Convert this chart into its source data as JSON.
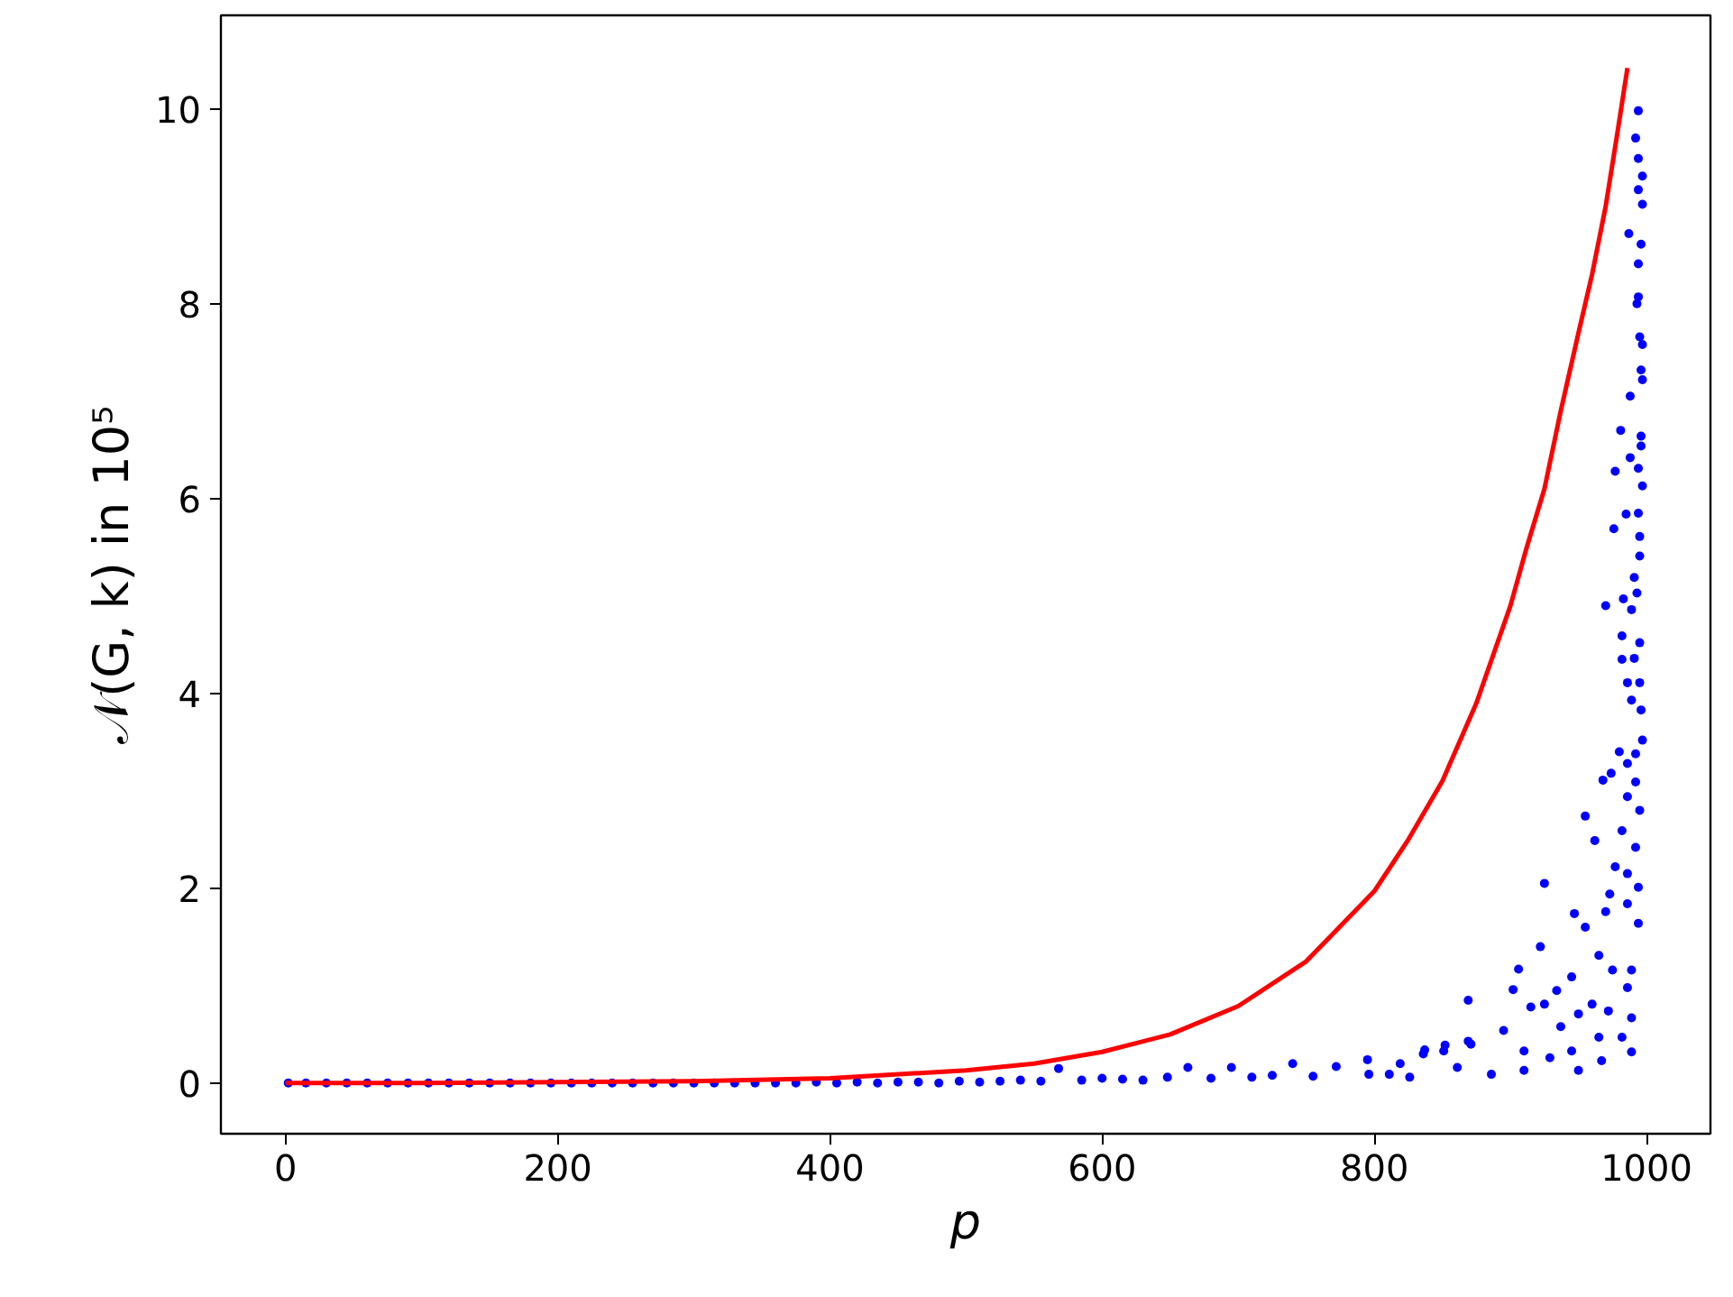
{
  "chart_data": {
    "type": "scatter",
    "xlabel": "p",
    "ylabel": "𝒩(G, k) in 10⁵",
    "xlim": [
      -47.5,
      1047
    ],
    "ylim": [
      -0.52,
      10.96
    ],
    "xticks": [
      0,
      200,
      400,
      600,
      800,
      1000
    ],
    "yticks": [
      0,
      2,
      4,
      6,
      8,
      10
    ],
    "grid": false,
    "marker": "circle",
    "series": [
      {
        "color": "#0000ff",
        "x": [
          2,
          15,
          30,
          45,
          60,
          75,
          90,
          105,
          120,
          135,
          150,
          165,
          180,
          195,
          210,
          225,
          240,
          255,
          270,
          285,
          300,
          315,
          330,
          345,
          360,
          375,
          390,
          405,
          420,
          435,
          450,
          465,
          480,
          495,
          510,
          525,
          540,
          555,
          568,
          585,
          600,
          615,
          630,
          648,
          663,
          680,
          695,
          710,
          725,
          740,
          755,
          772,
          795,
          796,
          811,
          819,
          826,
          836,
          837,
          851,
          852,
          861,
          869,
          869,
          871,
          886,
          895,
          902,
          906,
          910,
          910,
          915,
          922,
          925,
          925,
          929,
          934,
          937,
          945,
          945,
          947,
          950,
          950,
          955,
          955,
          960,
          962,
          965,
          965,
          967,
          968,
          970,
          970,
          972,
          973,
          974,
          975,
          976,
          977,
          977,
          980,
          981,
          982,
          982,
          982,
          982,
          983,
          985,
          986,
          986,
          986,
          986,
          986,
          986,
          987,
          988,
          988,
          989,
          989,
          989,
          989,
          989,
          991,
          991,
          992,
          992,
          992,
          992,
          993,
          993,
          994,
          994,
          994,
          994,
          994,
          994,
          994,
          994,
          994,
          995,
          995,
          995,
          995,
          995,
          995,
          996,
          996,
          996,
          996,
          996,
          997,
          997,
          997,
          997,
          997,
          997
        ],
        "values": [
          0,
          0,
          0,
          0,
          0,
          0,
          0,
          0,
          0,
          0,
          0,
          0,
          0,
          0,
          0,
          0,
          0,
          0,
          0,
          0,
          0,
          0,
          0,
          0,
          0,
          0,
          0.01,
          0,
          0.01,
          0,
          0.01,
          0.01,
          0,
          0.02,
          0.01,
          0.02,
          0.03,
          0.02,
          0.15,
          0.03,
          0.05,
          0.04,
          0.03,
          0.06,
          0.16,
          0.05,
          0.16,
          0.06,
          0.08,
          0.2,
          0.07,
          0.17,
          0.24,
          0.09,
          0.09,
          0.2,
          0.06,
          0.3,
          0.34,
          0.33,
          0.39,
          0.16,
          0.85,
          0.43,
          0.4,
          0.09,
          0.54,
          0.96,
          1.17,
          0.33,
          0.13,
          0.78,
          1.4,
          2.05,
          0.81,
          0.26,
          0.95,
          0.58,
          1.09,
          0.33,
          1.74,
          0.71,
          0.13,
          2.74,
          1.6,
          0.81,
          2.49,
          1.31,
          0.47,
          0.23,
          3.11,
          4.9,
          1.76,
          0.74,
          1.94,
          3.18,
          1.16,
          5.69,
          6.28,
          2.22,
          3.4,
          6.7,
          2.59,
          4.59,
          4.35,
          0.47,
          4.97,
          5.84,
          3.28,
          2.94,
          4.11,
          2.15,
          1.84,
          0.98,
          8.72,
          7.05,
          6.42,
          4.86,
          3.93,
          1.16,
          0.67,
          0.32,
          5.19,
          4.36,
          3.38,
          3.09,
          2.42,
          9.7,
          8.0,
          5.03,
          9.98,
          9.49,
          9.17,
          8.41,
          8.07,
          6.31,
          2.01,
          1.64,
          5.85,
          7.66,
          5.61,
          5.41,
          4.52,
          4.11,
          2.8,
          8.61,
          7.32,
          6.64,
          6.54,
          3.83,
          9.31,
          9.02,
          7.58,
          7.22,
          6.13,
          3.52
        ]
      },
      {
        "type": "line",
        "marker": "none",
        "color": "#ff0000",
        "x": [
          0,
          100,
          200,
          300,
          400,
          500,
          550,
          600,
          650,
          700,
          750,
          800,
          825,
          850,
          875,
          900,
          912,
          925,
          937,
          950,
          960,
          970,
          978,
          986
        ],
        "values": [
          0,
          0,
          0.01,
          0.02,
          0.05,
          0.13,
          0.2,
          0.32,
          0.5,
          0.79,
          1.25,
          1.97,
          2.5,
          3.1,
          3.9,
          4.9,
          5.5,
          6.1,
          6.9,
          7.7,
          8.3,
          9.0,
          9.7,
          10.42
        ]
      }
    ]
  }
}
